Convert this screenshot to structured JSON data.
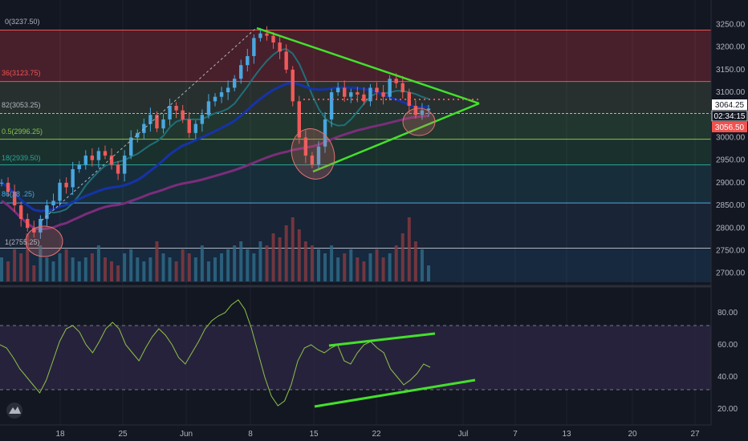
{
  "colors": {
    "background": "#131722",
    "grid": "#1f2433",
    "up": "#26a69a",
    "down": "#ef5350",
    "candle_up": "#4aa6e0",
    "candle_down": "#f05a5a",
    "trendline": "#44e02c",
    "ma_fast": "#1f6f78",
    "ma_mid": "#1533a8",
    "ma_slow": "#7b2d7a",
    "rsi_line": "#8bc34a",
    "rsi_band": "#3a2a5a",
    "price_tag_current": "#ffffff",
    "price_tag_red": "#ef5350"
  },
  "axis": {
    "price_ticks": [
      "3250.00",
      "3200.00",
      "3150.00",
      "3100.00",
      "3050.00",
      "3000.00",
      "2950.00",
      "2900.00",
      "2850.00",
      "2800.00",
      "2750.00",
      "2700.00"
    ],
    "rsi_ticks": [
      "80.00",
      "60.00",
      "40.00",
      "20.00"
    ],
    "time_ticks": [
      "18",
      "25",
      "Jun",
      "8",
      "15",
      "22",
      "Jul",
      "7",
      "13",
      "20",
      "27"
    ],
    "price_labels": {
      "current": "3064.25",
      "countdown": "02:34:15",
      "red": "3056.50"
    }
  },
  "fib": [
    {
      "label": "0(3237.50)",
      "color": "#b2b5be"
    },
    {
      "label": "36(3123.75)",
      "color": "#ef5350"
    },
    {
      "label": "82(3053.25)",
      "color": "#b2b5be"
    },
    {
      "label": "0.5(2996.25)",
      "color": "#8bc34a"
    },
    {
      "label": "18(2939.50)",
      "color": "#26a69a"
    },
    {
      "label": "86(28 .25)",
      "color": "#4aa6e0"
    },
    {
      "label": "1(2755.25)",
      "color": "#b2b5be"
    }
  ],
  "chart_data": [
    {
      "type": "candlestick",
      "title": "",
      "ylim": [
        2680,
        3265
      ],
      "x_ticks": [
        "18",
        "25",
        "Jun",
        "8",
        "15",
        "22",
        "Jul",
        "7",
        "13",
        "20",
        "27"
      ],
      "fib_levels": [
        3237.5,
        3123.75,
        3053.25,
        2996.25,
        2939.5,
        2855.25,
        2755.25
      ],
      "close_series": [
        2900,
        2880,
        2850,
        2820,
        2800,
        2790,
        2820,
        2850,
        2860,
        2900,
        2890,
        2930,
        2940,
        2960,
        2950,
        2970,
        2960,
        2940,
        2920,
        2960,
        3000,
        3010,
        3030,
        3050,
        3020,
        3040,
        3070,
        3060,
        3040,
        3010,
        3030,
        3050,
        3080,
        3090,
        3100,
        3110,
        3130,
        3160,
        3180,
        3220,
        3230,
        3225,
        3210,
        3190,
        3150,
        3080,
        3000,
        2960,
        2940,
        2980,
        3040,
        3100,
        3110,
        3090,
        3100,
        3095,
        3080,
        3110,
        3100,
        3090,
        3130,
        3120,
        3100,
        3070,
        3050,
        3060,
        3064
      ],
      "volume": [
        30,
        25,
        40,
        35,
        60,
        20,
        45,
        30,
        25,
        35,
        40,
        30,
        25,
        30,
        35,
        45,
        30,
        25,
        20,
        35,
        40,
        30,
        25,
        30,
        50,
        35,
        30,
        25,
        40,
        35,
        30,
        45,
        25,
        30,
        35,
        40,
        45,
        50,
        40,
        35,
        50,
        45,
        60,
        55,
        70,
        80,
        65,
        50,
        45,
        40,
        35,
        45,
        30,
        35,
        40,
        30,
        25,
        35,
        40,
        30,
        35,
        45,
        60,
        80,
        50,
        40,
        20
      ],
      "moving_averages": [
        "ma_fast",
        "ma_mid",
        "ma_slow"
      ]
    },
    {
      "type": "line",
      "title": "",
      "ylim": [
        12,
        92
      ],
      "y_ticks": [
        80,
        60,
        40,
        20
      ],
      "bands": [
        70,
        30
      ],
      "values": [
        60,
        58,
        52,
        45,
        40,
        35,
        30,
        38,
        50,
        62,
        70,
        72,
        68,
        60,
        55,
        62,
        70,
        74,
        70,
        60,
        55,
        50,
        58,
        65,
        70,
        66,
        60,
        52,
        48,
        55,
        62,
        70,
        75,
        78,
        80,
        85,
        88,
        82,
        70,
        55,
        40,
        28,
        22,
        25,
        35,
        50,
        58,
        60,
        57,
        55,
        58,
        60,
        50,
        48,
        55,
        60,
        62,
        58,
        55,
        45,
        40,
        35,
        38,
        42,
        48,
        46
      ]
    }
  ]
}
